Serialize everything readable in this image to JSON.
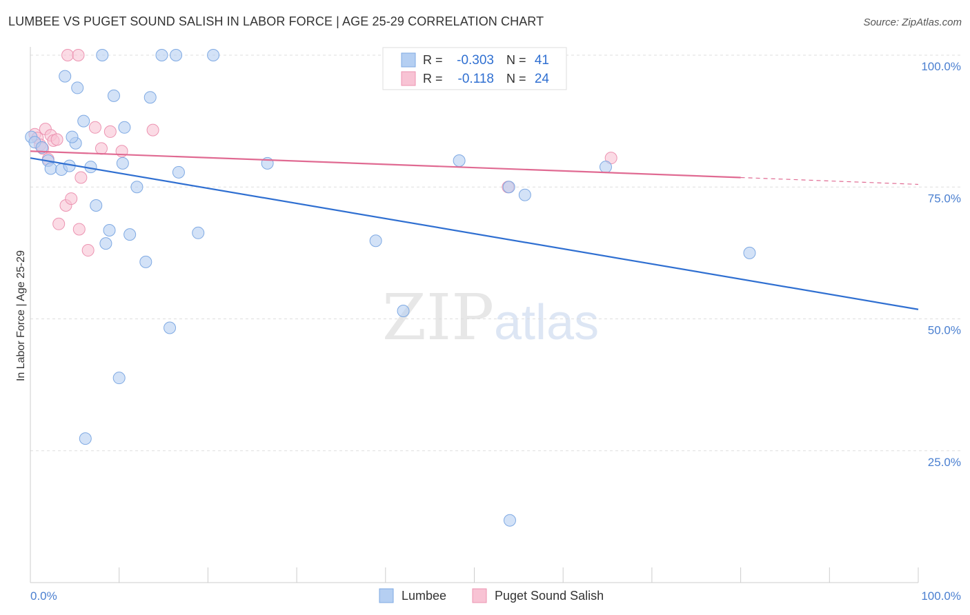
{
  "header": {
    "title": "LUMBEE VS PUGET SOUND SALISH IN LABOR FORCE | AGE 25-29 CORRELATION CHART",
    "source": "Source: ZipAtlas.com"
  },
  "watermark": {
    "zip": "ZIP",
    "atlas": "atlas"
  },
  "colors": {
    "lumbee_fill": "#b5cff2",
    "lumbee_stroke": "#7ea9e3",
    "lumbee_line": "#2f6fd1",
    "salish_fill": "#f8c3d4",
    "salish_stroke": "#ec93b1",
    "salish_line": "#e06a92",
    "axis_label": "#4a7fd0",
    "grid": "#dddddd"
  },
  "stats": [
    {
      "r_label": "R =",
      "r_value": "-0.303",
      "n_label": "N =",
      "n_value": "41"
    },
    {
      "r_label": "R =",
      "r_value": "-0.118",
      "n_label": "N =",
      "n_value": "24"
    }
  ],
  "chart_data": {
    "type": "scatter",
    "title": "LUMBEE VS PUGET SOUND SALISH IN LABOR FORCE | AGE 25-29 CORRELATION CHART",
    "xlabel": "",
    "ylabel": "In Labor Force | Age 25-29",
    "xlim": [
      0,
      100
    ],
    "ylim": [
      0,
      100
    ],
    "x_tick_labels": [
      "0.0%",
      "100.0%"
    ],
    "y_tick_labels": [
      {
        "value": 100,
        "label": "100.0%"
      },
      {
        "value": 75,
        "label": "75.0%"
      },
      {
        "value": 50,
        "label": "50.0%"
      },
      {
        "value": 25,
        "label": "25.0%"
      }
    ],
    "legend_position": "bottom",
    "series": [
      {
        "name": "Lumbee",
        "r": -0.303,
        "n": 41,
        "trend": {
          "x0": 0,
          "y0": 80.5,
          "x1": 100,
          "y1": 51.8
        },
        "points": [
          {
            "x": 0.1,
            "y": 84.5
          },
          {
            "x": 0.5,
            "y": 83.5
          },
          {
            "x": 1.3,
            "y": 82.5
          },
          {
            "x": 2.0,
            "y": 80.0
          },
          {
            "x": 2.3,
            "y": 78.5
          },
          {
            "x": 3.5,
            "y": 78.3
          },
          {
            "x": 4.4,
            "y": 79.0
          },
          {
            "x": 3.9,
            "y": 96.0
          },
          {
            "x": 5.1,
            "y": 83.3
          },
          {
            "x": 4.7,
            "y": 84.5
          },
          {
            "x": 5.3,
            "y": 93.8
          },
          {
            "x": 6.0,
            "y": 87.5
          },
          {
            "x": 6.8,
            "y": 78.8
          },
          {
            "x": 7.4,
            "y": 71.5
          },
          {
            "x": 8.1,
            "y": 100.0
          },
          {
            "x": 8.5,
            "y": 64.3
          },
          {
            "x": 8.9,
            "y": 66.8
          },
          {
            "x": 9.4,
            "y": 92.3
          },
          {
            "x": 10.4,
            "y": 79.5
          },
          {
            "x": 10.6,
            "y": 86.3
          },
          {
            "x": 11.2,
            "y": 66.0
          },
          {
            "x": 12.0,
            "y": 75.0
          },
          {
            "x": 13.0,
            "y": 60.8
          },
          {
            "x": 13.5,
            "y": 92.0
          },
          {
            "x": 14.8,
            "y": 100.0
          },
          {
            "x": 16.4,
            "y": 100.0
          },
          {
            "x": 16.7,
            "y": 77.8
          },
          {
            "x": 20.6,
            "y": 100.0
          },
          {
            "x": 18.9,
            "y": 66.3
          },
          {
            "x": 15.7,
            "y": 48.3
          },
          {
            "x": 10.0,
            "y": 38.8
          },
          {
            "x": 6.2,
            "y": 27.3
          },
          {
            "x": 26.7,
            "y": 79.5
          },
          {
            "x": 38.9,
            "y": 64.8
          },
          {
            "x": 42.0,
            "y": 51.5
          },
          {
            "x": 48.3,
            "y": 80.0
          },
          {
            "x": 53.9,
            "y": 75.0
          },
          {
            "x": 55.7,
            "y": 73.5
          },
          {
            "x": 64.8,
            "y": 78.8
          },
          {
            "x": 81.0,
            "y": 62.5
          },
          {
            "x": 54.0,
            "y": 11.8
          }
        ]
      },
      {
        "name": "Puget Sound Salish",
        "r": -0.118,
        "n": 24,
        "trend": {
          "x0": 0,
          "y0": 81.8,
          "x1": 80,
          "y1": 76.8,
          "dash_to_x": 100,
          "dash_to_y": 75.5
        },
        "points": [
          {
            "x": 0.5,
            "y": 85.0
          },
          {
            "x": 0.8,
            "y": 84.3
          },
          {
            "x": 1.1,
            "y": 83.0
          },
          {
            "x": 1.4,
            "y": 82.3
          },
          {
            "x": 1.7,
            "y": 86.0
          },
          {
            "x": 2.0,
            "y": 80.3
          },
          {
            "x": 2.3,
            "y": 84.8
          },
          {
            "x": 2.6,
            "y": 83.8
          },
          {
            "x": 3.0,
            "y": 84.0
          },
          {
            "x": 3.2,
            "y": 68.0
          },
          {
            "x": 4.0,
            "y": 71.5
          },
          {
            "x": 4.6,
            "y": 72.8
          },
          {
            "x": 4.2,
            "y": 100.0
          },
          {
            "x": 5.4,
            "y": 100.0
          },
          {
            "x": 5.5,
            "y": 67.0
          },
          {
            "x": 5.7,
            "y": 76.8
          },
          {
            "x": 6.5,
            "y": 63.0
          },
          {
            "x": 7.3,
            "y": 86.3
          },
          {
            "x": 8.0,
            "y": 82.3
          },
          {
            "x": 9.0,
            "y": 85.5
          },
          {
            "x": 10.3,
            "y": 81.8
          },
          {
            "x": 13.8,
            "y": 85.8
          },
          {
            "x": 53.8,
            "y": 75.0
          },
          {
            "x": 65.4,
            "y": 80.5
          }
        ]
      }
    ]
  }
}
